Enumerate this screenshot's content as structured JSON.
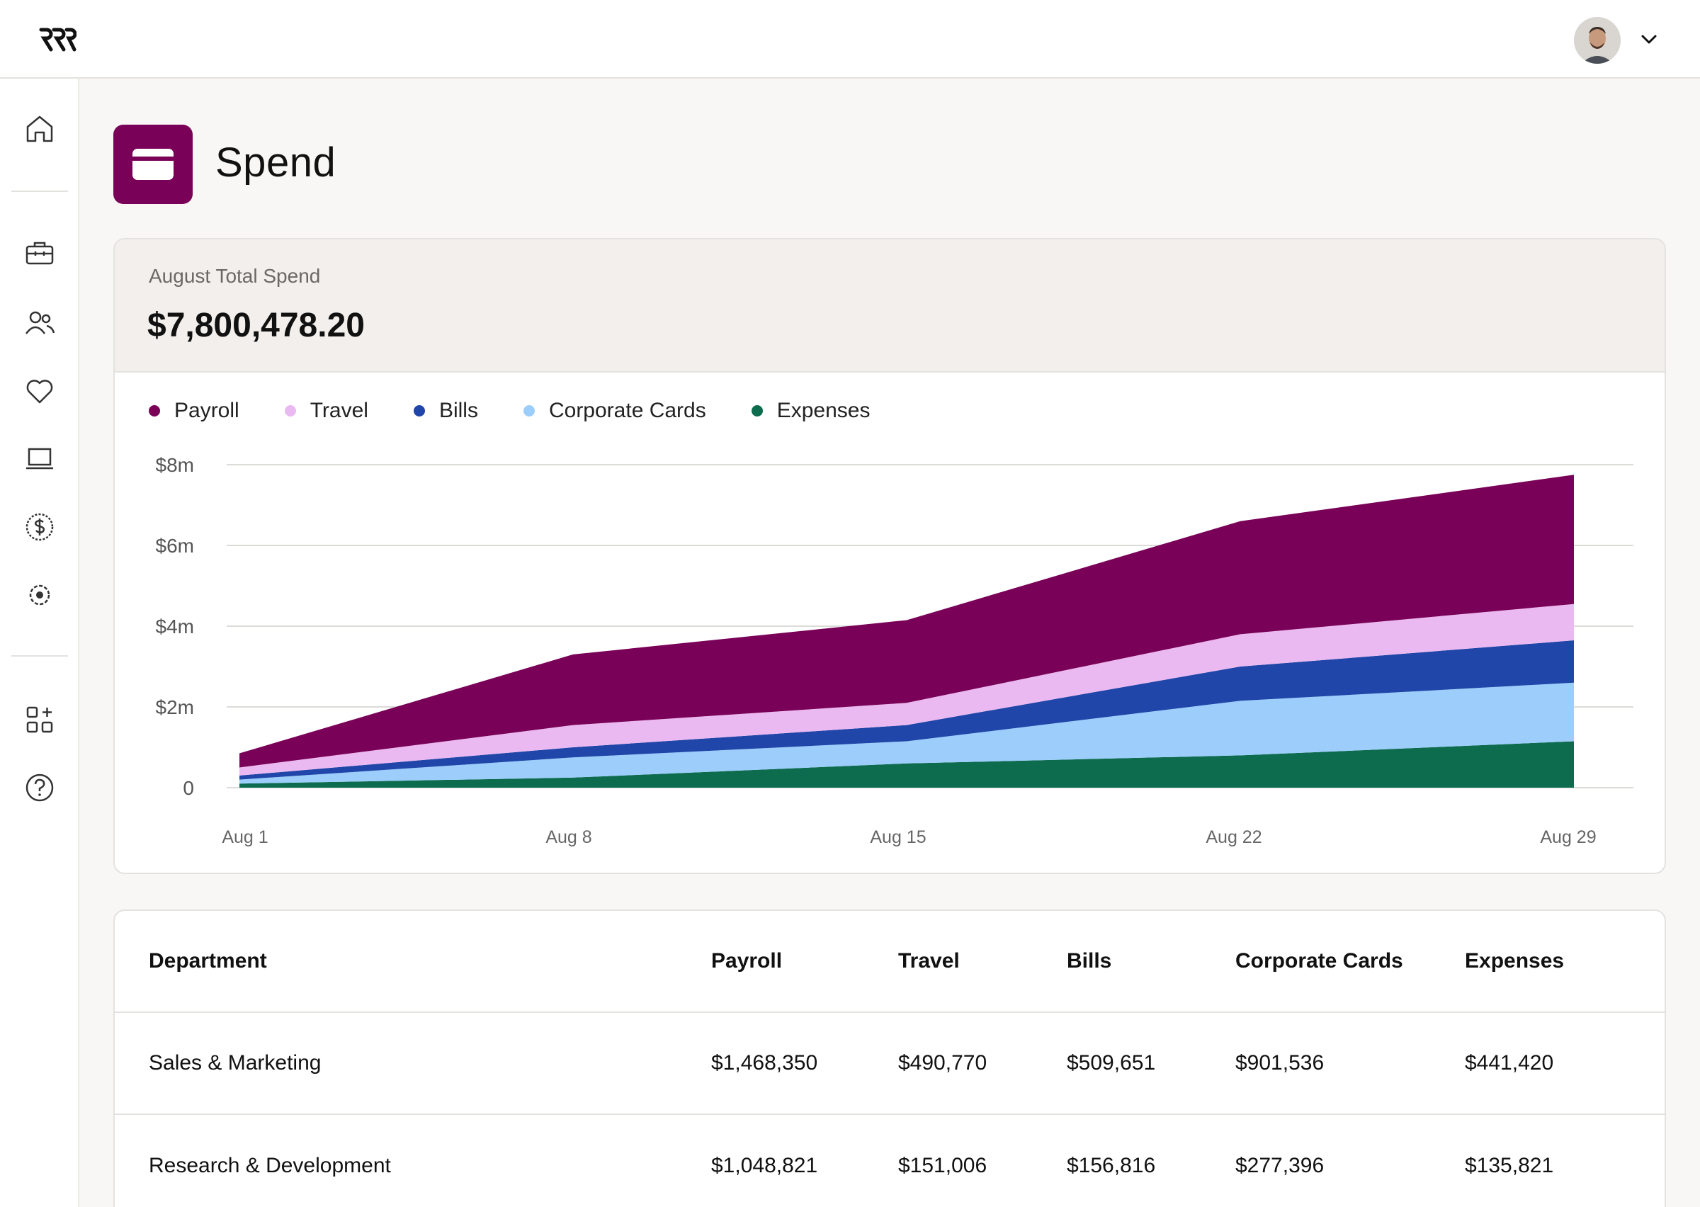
{
  "app": {
    "logo_icon": "brand-logo-icon",
    "avatar_icon": "user-avatar-icon"
  },
  "sidebar": {
    "items": [
      {
        "icon": "home-icon"
      },
      {
        "icon": "briefcase-icon"
      },
      {
        "icon": "people-icon"
      },
      {
        "icon": "heart-icon"
      },
      {
        "icon": "laptop-icon"
      },
      {
        "icon": "dollar-circle-icon"
      },
      {
        "icon": "gear-icon"
      },
      {
        "icon": "apps-add-icon"
      },
      {
        "icon": "help-icon"
      }
    ]
  },
  "header": {
    "title": "Spend",
    "icon": "credit-card-icon"
  },
  "summary": {
    "label": "August Total Spend",
    "value": "$7,800,478.20"
  },
  "colors": {
    "Payroll": "#7a0158",
    "Travel": "#ebb9f1",
    "Bills": "#1f46a8",
    "Corporate Cards": "#9ccdfb",
    "Expenses": "#0d6b4e"
  },
  "chart_data": {
    "type": "area",
    "stacked": true,
    "title": "",
    "xlabel": "",
    "ylabel": "",
    "ylim": [
      0,
      8
    ],
    "yticks": [
      0,
      2,
      4,
      6,
      8
    ],
    "ytick_labels": [
      "0",
      "$2m",
      "$4m",
      "$6m",
      "$8m"
    ],
    "x_labels": [
      "Aug 1",
      "Aug 8",
      "Aug 15",
      "Aug 22",
      "Aug 29"
    ],
    "grid": true,
    "legend_position": "top-left",
    "x": [
      "Aug 1",
      "Aug 8",
      "Aug 15",
      "Aug 22",
      "Aug 29"
    ],
    "series": [
      {
        "name": "Expenses",
        "values": [
          0.1,
          0.25,
          0.6,
          0.8,
          1.15
        ]
      },
      {
        "name": "Corporate Cards",
        "values": [
          0.1,
          0.5,
          0.55,
          1.35,
          1.45
        ]
      },
      {
        "name": "Bills",
        "values": [
          0.1,
          0.25,
          0.4,
          0.85,
          1.05
        ]
      },
      {
        "name": "Travel",
        "values": [
          0.2,
          0.55,
          0.55,
          0.8,
          0.9
        ]
      },
      {
        "name": "Payroll",
        "values": [
          0.35,
          1.75,
          2.05,
          2.8,
          3.2
        ]
      }
    ]
  },
  "table": {
    "headers": [
      "Department",
      "Payroll",
      "Travel",
      "Bills",
      "Corporate Cards",
      "Expenses"
    ],
    "rows": [
      [
        "Sales & Marketing",
        "$1,468,350",
        "$490,770",
        "$509,651",
        "$901,536",
        "$441,420"
      ],
      [
        "Research & Development",
        "$1,048,821",
        "$151,006",
        "$156,816",
        "$277,396",
        "$135,821"
      ]
    ]
  }
}
